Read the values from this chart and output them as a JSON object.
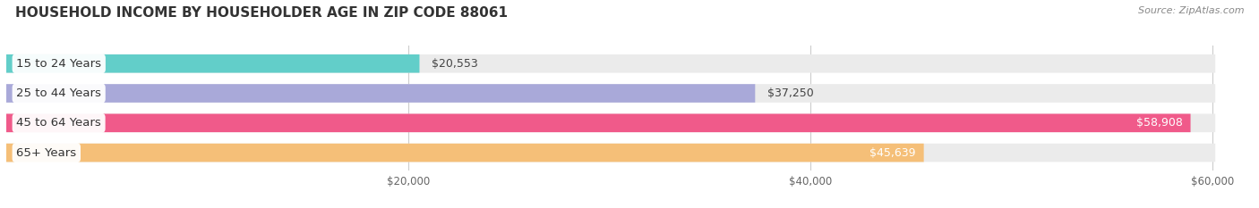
{
  "title": "HOUSEHOLD INCOME BY HOUSEHOLDER AGE IN ZIP CODE 88061",
  "source": "Source: ZipAtlas.com",
  "categories": [
    "15 to 24 Years",
    "25 to 44 Years",
    "45 to 64 Years",
    "65+ Years"
  ],
  "values": [
    20553,
    37250,
    58908,
    45639
  ],
  "bar_colors": [
    "#62cec9",
    "#a9a9d9",
    "#f05a8a",
    "#f5bf78"
  ],
  "bar_bg_color": "#ebebeb",
  "xlim": [
    0,
    62000
  ],
  "xticks": [
    20000,
    40000,
    60000
  ],
  "xtick_labels": [
    "$20,000",
    "$40,000",
    "$60,000"
  ],
  "figsize": [
    14.06,
    2.33
  ],
  "dpi": 100,
  "background_color": "#ffffff",
  "title_fontsize": 11,
  "source_fontsize": 8,
  "label_fontsize": 9.5,
  "bar_label_fontsize": 9,
  "bar_height": 0.62,
  "bar_rounding": 0.28
}
